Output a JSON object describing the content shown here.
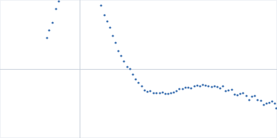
{
  "chart_data": {
    "type": "scatter",
    "color": "#3a6fb0",
    "marker": "circle",
    "x": [
      -47,
      -44,
      -39,
      -34,
      -30,
      31,
      36,
      40,
      44,
      48,
      52,
      56,
      60,
      64,
      69,
      73,
      77,
      81,
      85,
      90,
      94,
      98,
      102,
      107,
      111,
      116,
      120,
      124,
      128,
      132,
      136,
      140,
      144,
      149,
      153,
      157,
      161,
      166,
      170,
      174,
      178,
      182,
      186,
      191,
      195,
      199,
      203,
      207,
      211,
      215,
      220,
      224,
      228,
      232,
      236,
      241,
      245,
      249,
      253,
      257,
      262,
      266,
      270,
      274,
      278,
      282,
      284
    ],
    "values": [
      45,
      56,
      67,
      87,
      98,
      92,
      78,
      69,
      60,
      48,
      38,
      26,
      19,
      11,
      3,
      0,
      -8,
      -15,
      -20,
      -25,
      -31,
      -33,
      -32,
      -35,
      -35,
      -35,
      -34,
      -36,
      -36,
      -35,
      -34,
      -32,
      -29,
      -29,
      -27,
      -27,
      -28,
      -25,
      -24,
      -25,
      -23,
      -24,
      -25,
      -26,
      -25,
      -26,
      -28,
      -25,
      -32,
      -31,
      -30,
      -37,
      -38,
      -36,
      -35,
      -39,
      -45,
      -40,
      -39,
      -45,
      -46,
      -52,
      -50,
      -49,
      -47,
      -50,
      -57
    ],
    "xlim": [
      -115,
      285
    ],
    "ylim": [
      -100,
      100
    ],
    "xticks": [
      0
    ],
    "yticks": [
      0
    ],
    "grid": true,
    "tick_labels": false
  }
}
